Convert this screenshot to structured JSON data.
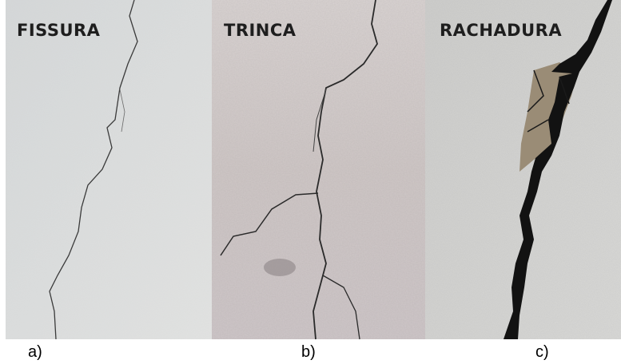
{
  "panels": [
    {
      "title": "FISSURA",
      "caption": "a)"
    },
    {
      "title": "TRINCA",
      "caption": "b)"
    },
    {
      "title": "RACHADURA",
      "caption": "c)"
    }
  ]
}
